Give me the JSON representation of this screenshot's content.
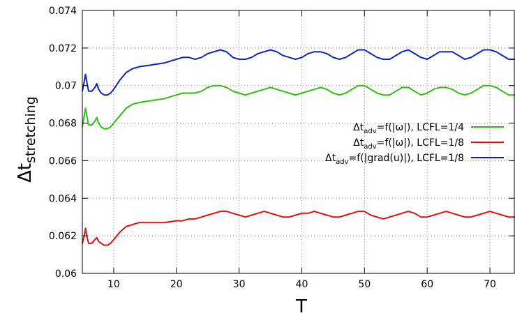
{
  "chart_data": {
    "type": "line",
    "xlabel": "T",
    "ylabel_main": "Δt",
    "ylabel_sub": "stretching",
    "xlim": [
      5,
      74
    ],
    "ylim": [
      0.06,
      0.074
    ],
    "xticks": [
      10,
      20,
      30,
      40,
      50,
      60,
      70
    ],
    "yticks": [
      0.06,
      0.062,
      0.064,
      0.066,
      0.068,
      0.07,
      0.072,
      0.074
    ],
    "ytick_labels": [
      "0.06",
      "0.062",
      "0.064",
      "0.066",
      "0.068",
      "0.07",
      "0.072",
      "0.074"
    ],
    "grid": true,
    "legend_position": "right",
    "series": [
      {
        "legend_main": "Δt",
        "legend_sub": "adv",
        "legend_rest": "=f(|ω|), LCFL=1/4",
        "color": "#33bb11",
        "x": [
          5,
          5.3,
          5.5,
          5.7,
          6,
          6.5,
          7,
          7.3,
          7.6,
          8,
          8.5,
          9,
          9.5,
          10,
          11,
          12,
          13,
          14,
          16,
          18,
          20,
          21,
          22,
          23,
          24,
          25,
          26,
          27,
          28,
          29,
          30,
          31,
          32,
          33,
          34,
          35,
          36,
          37,
          38,
          39,
          40,
          41,
          42,
          43,
          44,
          45,
          46,
          47,
          48,
          49,
          50,
          51,
          52,
          53,
          54,
          55,
          56,
          57,
          58,
          59,
          60,
          61,
          62,
          63,
          64,
          65,
          66,
          67,
          68,
          69,
          70,
          71,
          72,
          73,
          74
        ],
        "y": [
          0.0678,
          0.0684,
          0.0688,
          0.0684,
          0.0679,
          0.0679,
          0.0681,
          0.0683,
          0.068,
          0.0678,
          0.0677,
          0.0677,
          0.0678,
          0.068,
          0.0684,
          0.0688,
          0.069,
          0.0691,
          0.0692,
          0.0693,
          0.0695,
          0.0696,
          0.0696,
          0.0696,
          0.0697,
          0.0699,
          0.07,
          0.07,
          0.0699,
          0.0697,
          0.0696,
          0.0695,
          0.0696,
          0.0697,
          0.0698,
          0.0699,
          0.0698,
          0.0697,
          0.0696,
          0.0695,
          0.0696,
          0.0697,
          0.0698,
          0.0699,
          0.0698,
          0.0696,
          0.0695,
          0.0696,
          0.0698,
          0.07,
          0.07,
          0.0698,
          0.0696,
          0.0695,
          0.0695,
          0.0697,
          0.0699,
          0.0699,
          0.0697,
          0.0695,
          0.0696,
          0.0698,
          0.0699,
          0.0699,
          0.0698,
          0.0696,
          0.0695,
          0.0696,
          0.0698,
          0.07,
          0.07,
          0.0699,
          0.0697,
          0.0695,
          0.0695
        ]
      },
      {
        "legend_main": "Δt",
        "legend_sub": "adv",
        "legend_rest": "=f(|ω|), LCFL=1/8",
        "color": "#dd1111",
        "x": [
          5,
          5.3,
          5.5,
          5.7,
          6,
          6.5,
          7,
          7.3,
          7.6,
          8,
          8.5,
          9,
          9.5,
          10,
          11,
          12,
          13,
          14,
          16,
          18,
          20,
          21,
          22,
          23,
          24,
          25,
          26,
          27,
          28,
          29,
          30,
          31,
          32,
          33,
          34,
          35,
          36,
          37,
          38,
          39,
          40,
          41,
          42,
          43,
          44,
          45,
          46,
          47,
          48,
          49,
          50,
          51,
          52,
          53,
          54,
          55,
          56,
          57,
          58,
          59,
          60,
          61,
          62,
          63,
          64,
          65,
          66,
          67,
          68,
          69,
          70,
          71,
          72,
          73,
          74
        ],
        "y": [
          0.0616,
          0.062,
          0.0624,
          0.062,
          0.0616,
          0.0616,
          0.0618,
          0.0619,
          0.0617,
          0.0616,
          0.0615,
          0.0615,
          0.0616,
          0.0618,
          0.0622,
          0.0625,
          0.0626,
          0.0627,
          0.0627,
          0.0627,
          0.0628,
          0.0628,
          0.0629,
          0.0629,
          0.063,
          0.0631,
          0.0632,
          0.0633,
          0.0633,
          0.0632,
          0.0631,
          0.063,
          0.0631,
          0.0632,
          0.0633,
          0.0632,
          0.0631,
          0.063,
          0.063,
          0.0631,
          0.0632,
          0.0632,
          0.0633,
          0.0632,
          0.0631,
          0.063,
          0.063,
          0.0631,
          0.0632,
          0.0633,
          0.0633,
          0.0631,
          0.063,
          0.0629,
          0.063,
          0.0631,
          0.0632,
          0.0633,
          0.0632,
          0.063,
          0.063,
          0.0631,
          0.0632,
          0.0633,
          0.0632,
          0.0631,
          0.063,
          0.063,
          0.0631,
          0.0632,
          0.0633,
          0.0632,
          0.0631,
          0.063,
          0.063
        ]
      },
      {
        "legend_main": "Δt",
        "legend_sub": "adv",
        "legend_rest": "=f(|grad(u)|), LCFL=1/8",
        "color": "#1122bb",
        "x": [
          5,
          5.3,
          5.5,
          5.7,
          6,
          6.5,
          7,
          7.3,
          7.6,
          8,
          8.5,
          9,
          9.5,
          10,
          11,
          12,
          13,
          14,
          16,
          18,
          20,
          21,
          22,
          23,
          24,
          25,
          26,
          27,
          28,
          29,
          30,
          31,
          32,
          33,
          34,
          35,
          36,
          37,
          38,
          39,
          40,
          41,
          42,
          43,
          44,
          45,
          46,
          47,
          48,
          49,
          50,
          51,
          52,
          53,
          54,
          55,
          56,
          57,
          58,
          59,
          60,
          61,
          62,
          63,
          64,
          65,
          66,
          67,
          68,
          69,
          70,
          71,
          72,
          73,
          74
        ],
        "y": [
          0.0697,
          0.0702,
          0.0706,
          0.0702,
          0.0697,
          0.0697,
          0.0699,
          0.0701,
          0.0698,
          0.0696,
          0.0695,
          0.0695,
          0.0696,
          0.0698,
          0.0703,
          0.0707,
          0.0709,
          0.071,
          0.0711,
          0.0712,
          0.0714,
          0.0715,
          0.0715,
          0.0714,
          0.0715,
          0.0717,
          0.0718,
          0.0719,
          0.0718,
          0.0715,
          0.0714,
          0.0714,
          0.0715,
          0.0717,
          0.0718,
          0.0719,
          0.0718,
          0.0716,
          0.0715,
          0.0714,
          0.0715,
          0.0717,
          0.0718,
          0.0718,
          0.0717,
          0.0715,
          0.0714,
          0.0715,
          0.0717,
          0.0719,
          0.0719,
          0.0717,
          0.0715,
          0.0714,
          0.0714,
          0.0716,
          0.0718,
          0.0719,
          0.0717,
          0.0715,
          0.0714,
          0.0716,
          0.0718,
          0.0718,
          0.0718,
          0.0716,
          0.0714,
          0.0715,
          0.0717,
          0.0719,
          0.0719,
          0.0718,
          0.0716,
          0.0714,
          0.0714
        ]
      }
    ]
  }
}
